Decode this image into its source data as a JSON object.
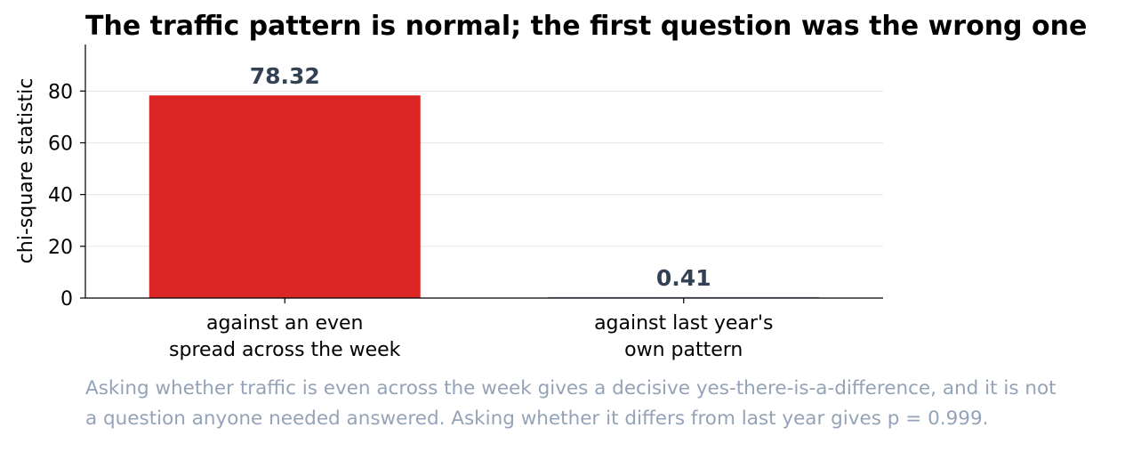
{
  "chart_data": {
    "type": "bar",
    "title": "The traffic pattern is normal; the first question was the wrong one",
    "ylabel": "chi-square statistic",
    "xlabel": "",
    "ylim": [
      0,
      98
    ],
    "yticks": [
      0,
      20,
      40,
      60,
      80
    ],
    "grid": "horizontal",
    "categories": [
      [
        "against an even",
        "spread across the week"
      ],
      [
        "against last year's",
        "own pattern"
      ]
    ],
    "values": [
      78.32,
      0.41
    ],
    "value_labels": [
      "78.32",
      "0.41"
    ],
    "colors": [
      "#dc2626",
      "#94a3b8"
    ],
    "value_label_color": "#334155",
    "caption": "Asking whether traffic is even across the week gives a decisive yes-there-is-a-difference, and it is not a question anyone needed answered. Asking whether it differs from last year gives p = 0.999."
  }
}
